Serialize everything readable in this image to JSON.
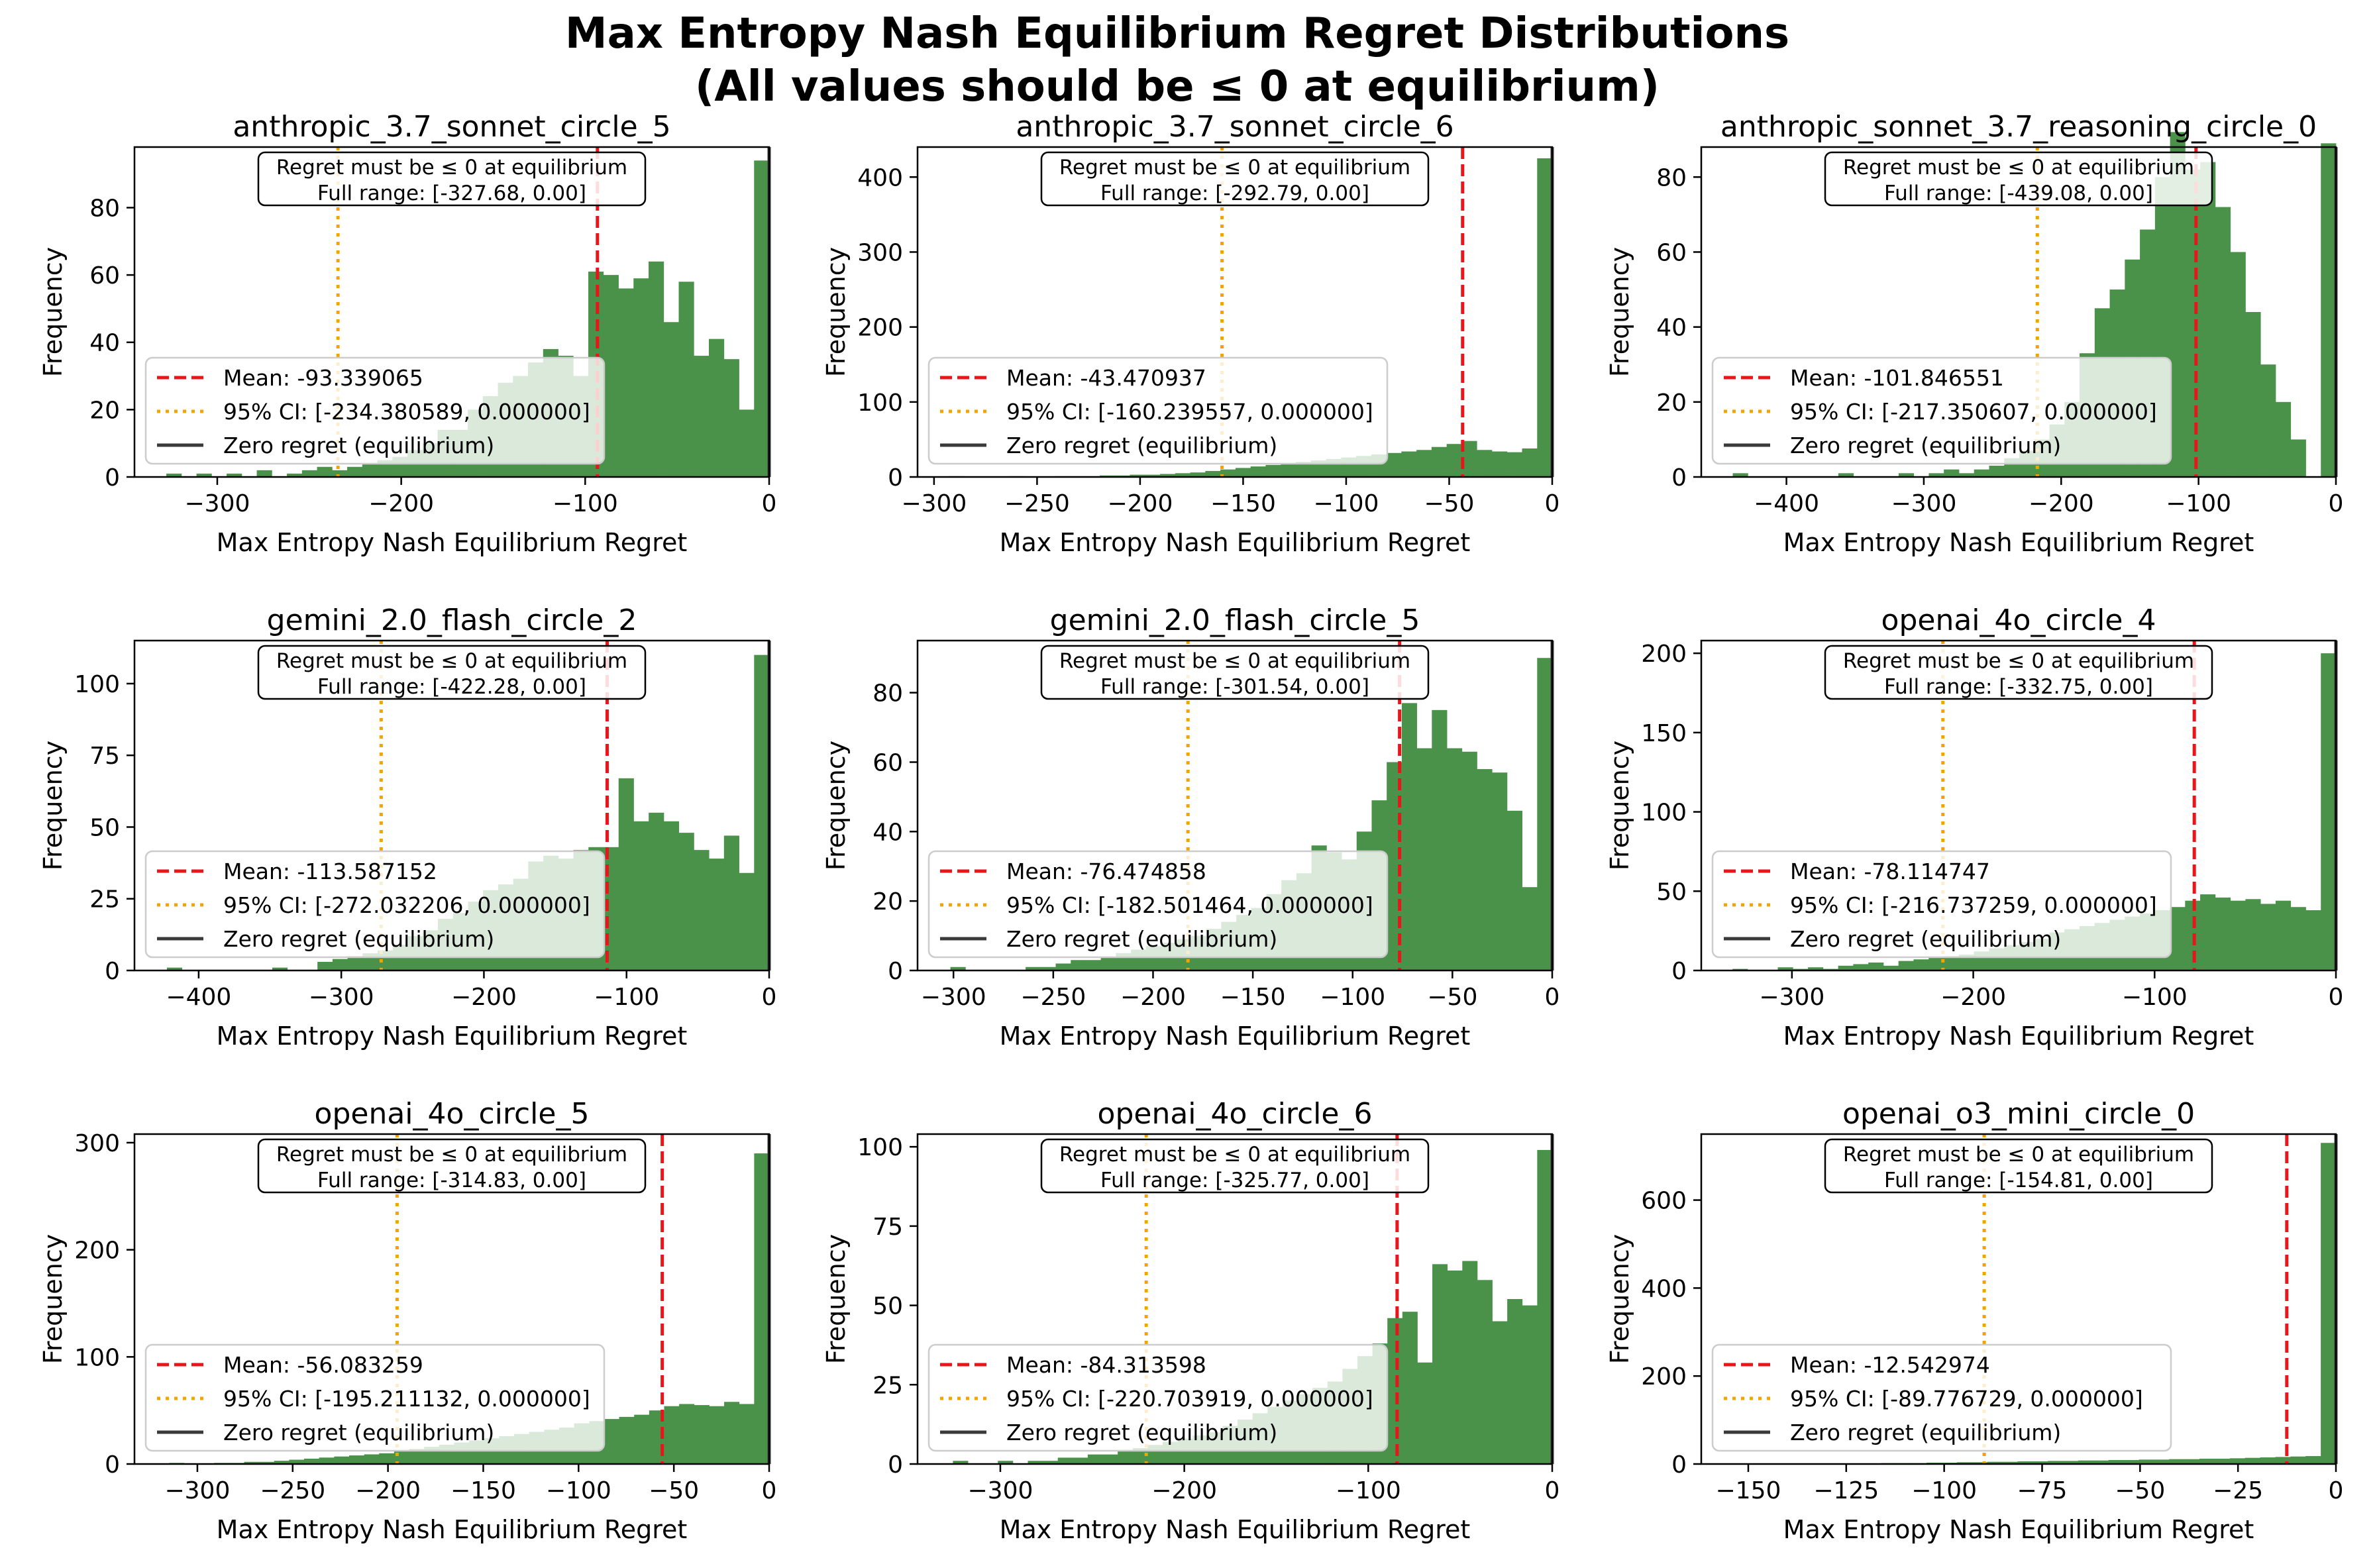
{
  "figure": {
    "title_line1": "Max Entropy Nash Equilibrium Regret Distributions",
    "title_line2": "(All values should be ≤ 0 at equilibrium)"
  },
  "colors": {
    "bar": "#4a914a",
    "mean": "#e8161a",
    "ci": "#f4a300",
    "zero": "#3a3a3a"
  },
  "common": {
    "xlabel": "Max Entropy Nash Equilibrium Regret",
    "ylabel": "Frequency",
    "note": "Regret must be ≤ 0 at equilibrium",
    "legend_zero": "Zero regret (equilibrium)"
  },
  "chart_data": [
    {
      "type": "bar",
      "title": "anthropic_3.7_sonnet_circle_5",
      "range_label": "Full range: [-327.68, 0.00]",
      "mean_label": "Mean: -93.339065",
      "ci_label": "95% CI: [-234.380589, 0.000000]",
      "mean": -93.339065,
      "ci": [
        -234.380589,
        0.0
      ],
      "full_range": [
        -327.68,
        0.0
      ],
      "xlim": [
        -345,
        0
      ],
      "ylim": [
        0,
        98
      ],
      "xticks": [
        -300,
        -200,
        -100,
        0
      ],
      "yticks": [
        0,
        20,
        40,
        60,
        80
      ],
      "bins": {
        "start": -327.68,
        "width": 8.192,
        "counts": [
          1,
          0,
          1,
          0,
          1,
          0,
          2,
          0,
          1,
          2,
          3,
          2,
          3,
          4,
          5,
          6,
          8,
          10,
          14,
          14,
          20,
          24,
          28,
          30,
          34,
          38,
          36,
          30,
          61,
          60,
          56,
          59,
          64,
          46,
          58,
          36,
          41,
          35,
          20,
          94
        ]
      }
    },
    {
      "type": "bar",
      "title": "anthropic_3.7_sonnet_circle_6",
      "range_label": "Full range: [-292.79, 0.00]",
      "mean_label": "Mean: -43.470937",
      "ci_label": "95% CI: [-160.239557, 0.000000]",
      "mean": -43.470937,
      "ci": [
        -160.239557,
        0.0
      ],
      "full_range": [
        -292.79,
        0.0
      ],
      "xlim": [
        -308,
        0
      ],
      "ylim": [
        0,
        440
      ],
      "xticks": [
        -300,
        -250,
        -200,
        -150,
        -100,
        -50,
        0
      ],
      "yticks": [
        0,
        100,
        200,
        300,
        400
      ],
      "bins": {
        "start": -292.79,
        "width": 7.32,
        "counts": [
          1,
          0,
          0,
          0,
          1,
          0,
          0,
          1,
          1,
          1,
          2,
          2,
          3,
          3,
          4,
          5,
          6,
          8,
          10,
          12,
          14,
          16,
          18,
          20,
          22,
          24,
          26,
          28,
          30,
          32,
          34,
          36,
          40,
          44,
          48,
          36,
          34,
          33,
          38,
          425
        ]
      }
    },
    {
      "type": "bar",
      "title": "anthropic_sonnet_3.7_reasoning_circle_0",
      "range_label": "Full range: [-439.08, 0.00]",
      "mean_label": "Mean: -101.846551",
      "ci_label": "95% CI: [-217.350607, 0.000000]",
      "mean": -101.846551,
      "ci": [
        -217.350607,
        0.0
      ],
      "full_range": [
        -439.08,
        0.0
      ],
      "xlim": [
        -462,
        0
      ],
      "ylim": [
        0,
        88
      ],
      "xticks": [
        -400,
        -300,
        -200,
        -100,
        0
      ],
      "yticks": [
        0,
        20,
        40,
        60,
        80
      ],
      "bins": {
        "start": -439.08,
        "width": 10.977,
        "counts": [
          1,
          0,
          0,
          0,
          0,
          0,
          0,
          1,
          0,
          0,
          0,
          1,
          0,
          1,
          2,
          1,
          2,
          3,
          5,
          7,
          10,
          14,
          20,
          33,
          45,
          50,
          58,
          66,
          80,
          92,
          82,
          84,
          72,
          60,
          44,
          30,
          20,
          10,
          0,
          89
        ]
      }
    },
    {
      "type": "bar",
      "title": "gemini_2.0_flash_circle_2",
      "range_label": "Full range: [-422.28, 0.00]",
      "mean_label": "Mean: -113.587152",
      "ci_label": "95% CI: [-272.032206, 0.000000]",
      "mean": -113.587152,
      "ci": [
        -272.032206,
        0.0
      ],
      "full_range": [
        -422.28,
        0.0
      ],
      "xlim": [
        -445,
        0
      ],
      "ylim": [
        0,
        115
      ],
      "xticks": [
        -400,
        -300,
        -200,
        -100,
        0
      ],
      "yticks": [
        0,
        25,
        50,
        75,
        100
      ],
      "bins": {
        "start": -422.28,
        "width": 10.557,
        "counts": [
          1,
          0,
          0,
          0,
          0,
          0,
          0,
          1,
          0,
          0,
          3,
          4,
          5,
          6,
          7,
          9,
          12,
          14,
          18,
          20,
          24,
          28,
          30,
          32,
          38,
          40,
          39,
          42,
          43,
          43,
          67,
          52,
          55,
          52,
          48,
          42,
          39,
          47,
          34,
          110
        ]
      }
    },
    {
      "type": "bar",
      "title": "gemini_2.0_flash_circle_5",
      "range_label": "Full range: [-301.54, 0.00]",
      "mean_label": "Mean: -76.474858",
      "ci_label": "95% CI: [-182.501464, 0.000000]",
      "mean": -76.474858,
      "ci": [
        -182.501464,
        0.0
      ],
      "full_range": [
        -301.54,
        0.0
      ],
      "xlim": [
        -318,
        0
      ],
      "ylim": [
        0,
        95
      ],
      "xticks": [
        -300,
        -250,
        -200,
        -150,
        -100,
        -50,
        0
      ],
      "yticks": [
        0,
        20,
        40,
        60,
        80
      ],
      "bins": {
        "start": -301.54,
        "width": 7.5385,
        "counts": [
          1,
          0,
          0,
          0,
          0,
          1,
          1,
          2,
          3,
          3,
          4,
          5,
          6,
          7,
          8,
          9,
          10,
          12,
          14,
          16,
          18,
          22,
          26,
          28,
          36,
          34,
          32,
          40,
          49,
          60,
          77,
          64,
          75,
          64,
          63,
          58,
          57,
          46,
          24,
          90
        ]
      }
    },
    {
      "type": "bar",
      "title": "openai_4o_circle_4",
      "range_label": "Full range: [-332.75, 0.00]",
      "mean_label": "Mean: -78.114747",
      "ci_label": "95% CI: [-216.737259, 0.000000]",
      "mean": -78.114747,
      "ci": [
        -216.737259,
        0.0
      ],
      "full_range": [
        -332.75,
        0.0
      ],
      "xlim": [
        -350,
        0
      ],
      "ylim": [
        0,
        208
      ],
      "xticks": [
        -300,
        -200,
        -100,
        0
      ],
      "yticks": [
        0,
        50,
        100,
        150,
        200
      ],
      "bins": {
        "start": -332.75,
        "width": 8.3188,
        "counts": [
          1,
          0,
          0,
          2,
          1,
          2,
          1,
          3,
          4,
          5,
          3,
          6,
          7,
          8,
          9,
          10,
          12,
          14,
          16,
          18,
          20,
          24,
          26,
          28,
          30,
          32,
          34,
          36,
          38,
          40,
          44,
          48,
          46,
          44,
          45,
          42,
          44,
          40,
          38,
          200
        ]
      }
    },
    {
      "type": "bar",
      "title": "openai_4o_circle_5",
      "range_label": "Full range: [-314.83, 0.00]",
      "mean_label": "Mean: -56.083259",
      "ci_label": "95% CI: [-195.211132, 0.000000]",
      "mean": -56.083259,
      "ci": [
        -195.211132,
        0.0
      ],
      "full_range": [
        -314.83,
        0.0
      ],
      "xlim": [
        -333,
        0
      ],
      "ylim": [
        0,
        308
      ],
      "xticks": [
        -300,
        -250,
        -200,
        -150,
        -100,
        -50,
        0
      ],
      "yticks": [
        0,
        100,
        200,
        300
      ],
      "bins": {
        "start": -314.83,
        "width": 7.8708,
        "counts": [
          1,
          0,
          0,
          1,
          1,
          2,
          2,
          3,
          4,
          5,
          6,
          7,
          8,
          9,
          10,
          12,
          14,
          16,
          18,
          20,
          22,
          24,
          26,
          28,
          30,
          32,
          34,
          38,
          40,
          42,
          44,
          46,
          50,
          54,
          56,
          55,
          54,
          58,
          56,
          290
        ]
      }
    },
    {
      "type": "bar",
      "title": "openai_4o_circle_6",
      "range_label": "Full range: [-325.77, 0.00]",
      "mean_label": "Mean: -84.313598",
      "ci_label": "95% CI: [-220.703919, 0.000000]",
      "mean": -84.313598,
      "ci": [
        -220.703919,
        0.0
      ],
      "full_range": [
        -325.77,
        0.0
      ],
      "xlim": [
        -345,
        0
      ],
      "ylim": [
        0,
        104
      ],
      "xticks": [
        -300,
        -200,
        -100,
        0
      ],
      "yticks": [
        0,
        25,
        50,
        75,
        100
      ],
      "bins": {
        "start": -325.77,
        "width": 8.144,
        "counts": [
          1,
          0,
          0,
          1,
          0,
          1,
          1,
          2,
          2,
          3,
          3,
          4,
          5,
          6,
          7,
          8,
          9,
          10,
          12,
          14,
          16,
          18,
          20,
          22,
          24,
          26,
          30,
          34,
          38,
          46,
          48,
          32,
          63,
          61,
          64,
          58,
          45,
          52,
          50,
          99
        ]
      }
    },
    {
      "type": "bar",
      "title": "openai_o3_mini_circle_0",
      "range_label": "Full range: [-154.81, 0.00]",
      "mean_label": "Mean: -12.542974",
      "ci_label": "95% CI: [-89.776729, 0.000000]",
      "mean": -12.542974,
      "ci": [
        -89.776729,
        0.0
      ],
      "full_range": [
        -154.81,
        0.0
      ],
      "xlim": [
        -162,
        0
      ],
      "ylim": [
        0,
        750
      ],
      "xticks": [
        -150,
        -125,
        -100,
        -75,
        -50,
        -25,
        0
      ],
      "yticks": [
        0,
        200,
        400,
        600
      ],
      "bins": {
        "start": -154.81,
        "width": 3.8703,
        "counts": [
          1,
          0,
          0,
          1,
          0,
          1,
          0,
          1,
          1,
          1,
          2,
          2,
          2,
          3,
          3,
          4,
          4,
          5,
          5,
          6,
          6,
          7,
          7,
          8,
          8,
          9,
          9,
          10,
          10,
          11,
          11,
          12,
          12,
          13,
          14,
          15,
          16,
          17,
          18,
          730
        ]
      }
    }
  ]
}
